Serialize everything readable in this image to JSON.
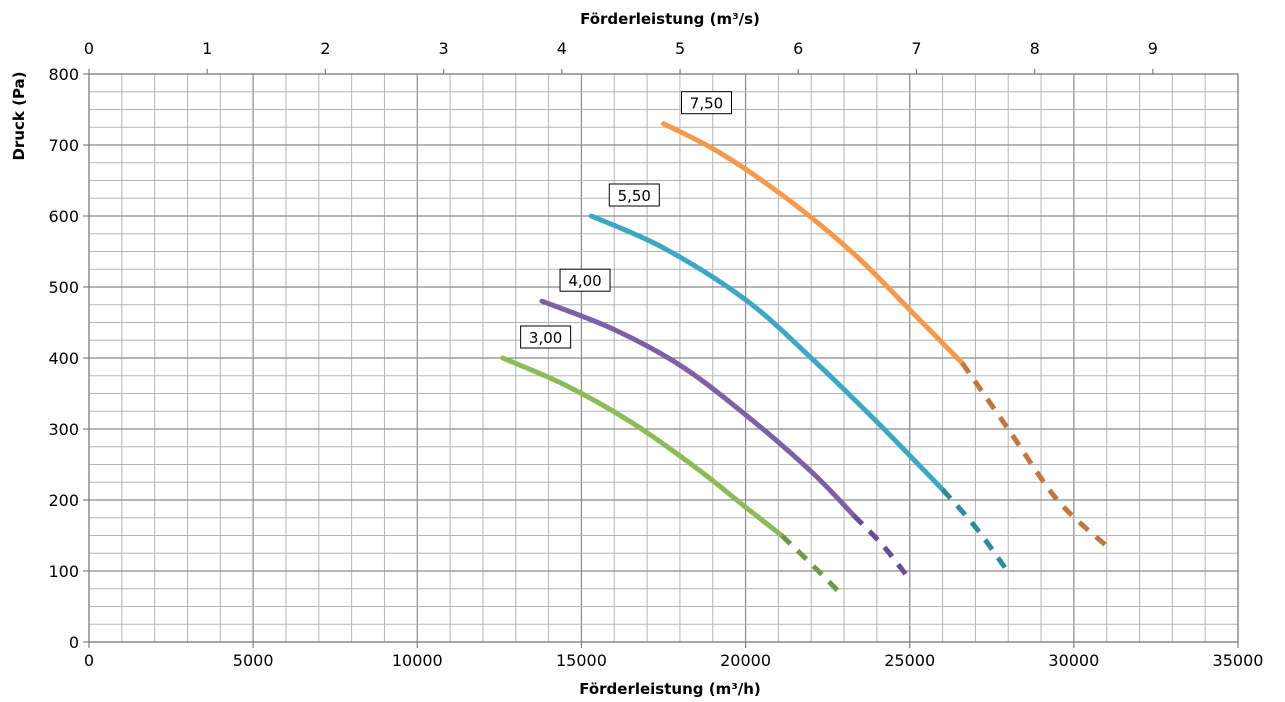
{
  "chart_data": {
    "type": "line",
    "xlabel_bottom": "Förderleistung (m³/h)",
    "xlabel_top": "Förderleistung (m³/s)",
    "ylabel": "Druck (Pa)",
    "xlim": [
      0,
      35000
    ],
    "xlim_top": [
      0,
      9.72
    ],
    "ylim": [
      0,
      800
    ],
    "x_ticks": [
      "0",
      "5000",
      "10000",
      "15000",
      "20000",
      "25000",
      "30000",
      "35000"
    ],
    "x_top_ticks": [
      "0",
      "1",
      "2",
      "3",
      "4",
      "5",
      "6",
      "7",
      "8",
      "9"
    ],
    "y_ticks": [
      "0",
      "100",
      "200",
      "300",
      "400",
      "500",
      "600",
      "700",
      "800"
    ],
    "grid": true,
    "series": [
      {
        "name": "3,00",
        "color": "#8dbb5a",
        "dash_color": "#6f9a45",
        "points": [
          [
            12600,
            400
          ],
          [
            14500,
            362
          ],
          [
            16500,
            310
          ],
          [
            18500,
            245
          ],
          [
            20000,
            190
          ],
          [
            21100,
            150
          ]
        ],
        "dashed_points": [
          [
            21100,
            150
          ],
          [
            22000,
            110
          ],
          [
            22900,
            68
          ]
        ]
      },
      {
        "name": "4,00",
        "color": "#7d60a5",
        "dash_color": "#6a4c93",
        "points": [
          [
            13800,
            480
          ],
          [
            16000,
            440
          ],
          [
            18000,
            390
          ],
          [
            20000,
            320
          ],
          [
            22000,
            240
          ],
          [
            23300,
            178
          ]
        ],
        "dashed_points": [
          [
            23300,
            178
          ],
          [
            24200,
            135
          ],
          [
            25000,
            88
          ]
        ]
      },
      {
        "name": "5,50",
        "color": "#3ea7c4",
        "dash_color": "#31899f",
        "points": [
          [
            15300,
            600
          ],
          [
            17500,
            555
          ],
          [
            20000,
            482
          ],
          [
            22000,
            400
          ],
          [
            24000,
            310
          ],
          [
            26000,
            215
          ]
        ],
        "dashed_points": [
          [
            26000,
            215
          ],
          [
            27000,
            162
          ],
          [
            27900,
            105
          ]
        ]
      },
      {
        "name": "7,50",
        "color": "#f59a4a",
        "dash_color": "#c07840",
        "points": [
          [
            17500,
            730
          ],
          [
            19000,
            695
          ],
          [
            20500,
            650
          ],
          [
            22000,
            598
          ],
          [
            23500,
            538
          ],
          [
            25000,
            468
          ],
          [
            26600,
            393
          ]
        ],
        "dashed_points": [
          [
            26600,
            393
          ],
          [
            28000,
            300
          ],
          [
            29500,
            200
          ],
          [
            31000,
            135
          ]
        ]
      }
    ]
  }
}
